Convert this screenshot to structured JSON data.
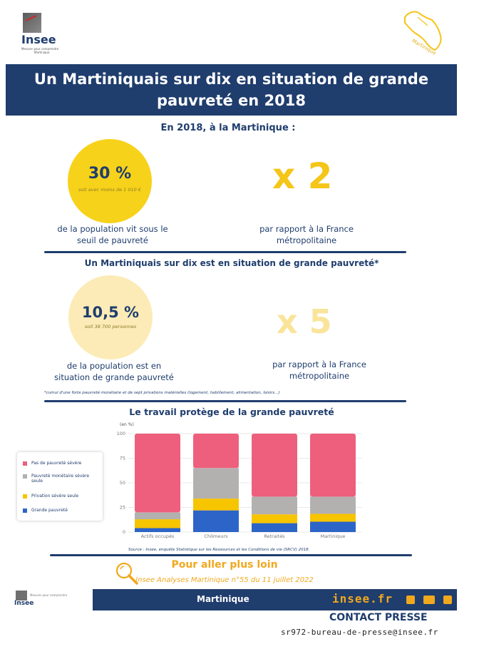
{
  "header": {
    "logo_word": "Insee",
    "logo_sub": "Mesurer pour comprendre",
    "logo_region": "Martinique",
    "map_label": "Martinique",
    "title_line1": "Un Martiniquais sur dix en situation de grande",
    "title_line2": "pauvreté en 2018"
  },
  "section1": {
    "heading": "En 2018, à la Martinique :",
    "stat_value": "30 %",
    "stat_note": "soit avec moins de 1 010 €",
    "stat_caption_line1": "de la population vit sous le",
    "stat_caption_line2": "seuil de pauvreté",
    "ratio": "x 2",
    "ratio_caption_line1": "par rapport à la France",
    "ratio_caption_line2": "métropolitaine"
  },
  "section2": {
    "heading": "Un Martiniquais sur dix est en situation de grande pauvreté*",
    "stat_value": "10,5 %",
    "stat_note": "soit 38 700 personnes",
    "stat_caption_line1": "de la population est en",
    "stat_caption_line2": "situation de grande pauvreté",
    "ratio": "x 5",
    "ratio_caption_line1": "par rapport à la France",
    "ratio_caption_line2": "métropolitaine",
    "footnote": "*cumul d'une forte pauvreté monétaire et de sept privations matérielles (logement, habillement, alimentation, loisirs...)"
  },
  "chart_data": {
    "type": "bar",
    "stacked": true,
    "title": "Le travail protège de la grande pauvreté",
    "unit_label": "(en %)",
    "ylim": [
      0,
      100
    ],
    "yticks": [
      "0",
      "25",
      "50",
      "75",
      "100"
    ],
    "categories": [
      "Actifs occupés",
      "Chômeurs",
      "Retraités",
      "Martinique"
    ],
    "series": [
      {
        "name": "Grande pauvreté",
        "color": "#2d64c8",
        "values": [
          4,
          22,
          9,
          10.5
        ]
      },
      {
        "name": "Privation sévère seule",
        "color": "#f7c400",
        "values": [
          9,
          12,
          9,
          8
        ]
      },
      {
        "name": "Pauvreté monétaire sévère seule",
        "color": "#b3b0b0",
        "values": [
          7,
          31,
          18,
          17.5
        ]
      },
      {
        "name": "Pas de pauvreté sévère",
        "color": "#ed5f7c",
        "values": [
          80,
          35,
          64,
          64
        ]
      }
    ],
    "legend_placement": "left",
    "grid": true,
    "source": "Source : Insee, enquête Statistique sur les Ressources et les Conditions de vie (SRCV) 2018."
  },
  "more": {
    "title": "Pour aller plus loin",
    "subtitle": "Insee Analyses Martinique n°55 du 11 juillet 2022"
  },
  "footer": {
    "logo_word": "Insee",
    "logo_sub": "Mesurer pour comprendre",
    "region": "Martinique",
    "site": "insee.fr",
    "contact": "CONTACT PRESSE",
    "email": "sr972-bureau-de-presse@insee.fr",
    "social_icons": [
      "twitter-icon",
      "youtube-icon",
      "linkedin-icon"
    ]
  }
}
